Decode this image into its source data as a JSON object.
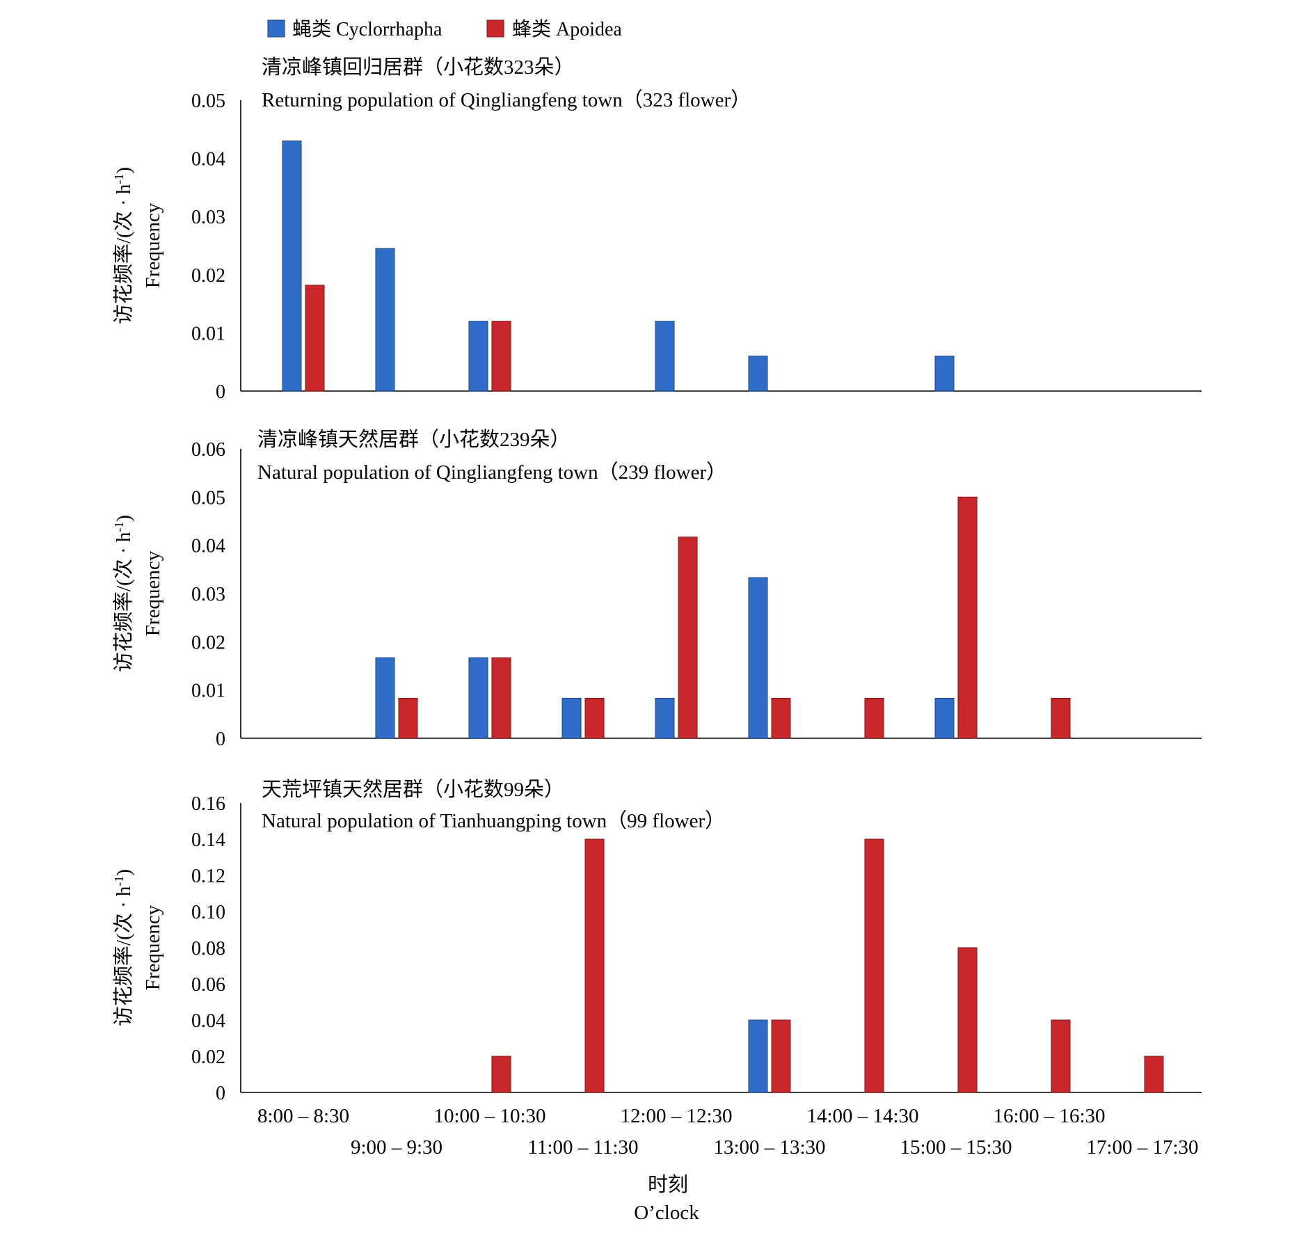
{
  "legend": [
    {
      "label": "蝇类 Cyclorrhapha",
      "color": "#2f6dc8"
    },
    {
      "label": "蜂类 Apoidea",
      "color": "#c8282c"
    }
  ],
  "xaxis": {
    "label_cn": "时刻",
    "label_en": "O’clock",
    "tick_labels": [
      "8:00 – 8:30",
      "9:00 – 9:30",
      "10:00 – 10:30",
      "11:00 – 11:30",
      "12:00 – 12:30",
      "13:00 – 13:30",
      "14:00 – 14:30",
      "15:00 – 15:30",
      "16:00 – 16:30",
      "17:00 – 17:30"
    ]
  },
  "ylabel_cn": "访花频率/(次 · h-1)",
  "ylabel_cn_base": "访花频率/(次 · h",
  "ylabel_cn_sup": "-1",
  "ylabel_cn_close": ")",
  "ylabel_en": "Frequency",
  "chart_data": [
    {
      "type": "bar",
      "title_cn": "清凉峰镇回归居群（小花数323朵）",
      "title_en": "Returning population of Qingliangfeng  town（323 flower）",
      "categories": [
        "8:00 – 8:30",
        "9:00 – 9:30",
        "10:00 – 10:30",
        "11:00 – 11:30",
        "12:00 – 12:30",
        "13:00 – 13:30",
        "14:00 – 14:30",
        "15:00 – 15:30",
        "16:00 – 16:30",
        "17:00 – 17:30"
      ],
      "ylim": [
        0,
        0.05
      ],
      "yticks": [
        "0",
        "0.01",
        "0.02",
        "0.03",
        "0.04",
        "0.05"
      ],
      "series": [
        {
          "name": "蝇类 Cyclorrhapha",
          "values": [
            0.043,
            0.0245,
            0.012,
            0,
            0.012,
            0.006,
            0,
            0.006,
            0,
            0
          ]
        },
        {
          "name": "蜂类 Apoidea",
          "values": [
            0.0182,
            0,
            0.012,
            0,
            0,
            0,
            0,
            0,
            0,
            0
          ]
        }
      ]
    },
    {
      "type": "bar",
      "title_cn": "清凉峰镇天然居群（小花数239朵）",
      "title_en": "Natural population of Qingliangfeng  town（239 flower）",
      "categories": [
        "8:00 – 8:30",
        "9:00 – 9:30",
        "10:00 – 10:30",
        "11:00 – 11:30",
        "12:00 – 12:30",
        "13:00 – 13:30",
        "14:00 – 14:30",
        "15:00 – 15:30",
        "16:00 – 16:30",
        "17:00 – 17:30"
      ],
      "ylim": [
        0,
        0.06
      ],
      "yticks": [
        "0",
        "0.01",
        "0.02",
        "0.03",
        "0.04",
        "0.05",
        "0.06"
      ],
      "series": [
        {
          "name": "蝇类 Cyclorrhapha",
          "values": [
            0,
            0.0167,
            0.0167,
            0.0083,
            0.0083,
            0.0333,
            0,
            0.0083,
            0,
            0
          ]
        },
        {
          "name": "蜂类 Apoidea",
          "values": [
            0,
            0.0083,
            0.0167,
            0.0083,
            0.0417,
            0.0083,
            0.0083,
            0.05,
            0.0083,
            0
          ]
        }
      ]
    },
    {
      "type": "bar",
      "title_cn": "天荒坪镇天然居群（小花数99朵）",
      "title_en": "Natural population of Tianhuangping  town（99 flower）",
      "categories": [
        "8:00 – 8:30",
        "9:00 – 9:30",
        "10:00 – 10:30",
        "11:00 – 11:30",
        "12:00 – 12:30",
        "13:00 – 13:30",
        "14:00 – 14:30",
        "15:00 – 15:30",
        "16:00 – 16:30",
        "17:00 – 17:30"
      ],
      "ylim": [
        0,
        0.16
      ],
      "yticks": [
        "0",
        "0.02",
        "0.04",
        "0.06",
        "0.08",
        "0.10",
        "0.12",
        "0.14",
        "0.16"
      ],
      "series": [
        {
          "name": "蝇类 Cyclorrhapha",
          "values": [
            0,
            0,
            0,
            0,
            0,
            0.04,
            0,
            0,
            0,
            0
          ]
        },
        {
          "name": "蜂类 Apoidea",
          "values": [
            0,
            0,
            0.02,
            0.14,
            0,
            0.04,
            0.14,
            0.08,
            0.04,
            0.02
          ]
        }
      ]
    }
  ]
}
